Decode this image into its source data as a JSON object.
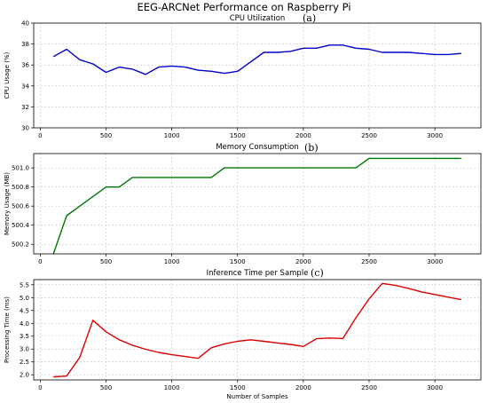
{
  "figure_title": "EEG-ARCNet Performance on Raspberry Pi",
  "chart_data": [
    {
      "type": "line",
      "title": "CPU Utilization",
      "panel_label": "(a)",
      "xlabel": "",
      "ylabel": "CPU Usage (%)",
      "xlim": [
        -50,
        3350
      ],
      "ylim": [
        30,
        40
      ],
      "xticks": [
        0,
        500,
        1000,
        1500,
        2000,
        2500,
        3000
      ],
      "yticks": [
        30,
        32,
        34,
        36,
        38,
        40
      ],
      "ytick_labels": [
        "30",
        "32",
        "34",
        "36",
        "38",
        "40"
      ],
      "grid": true,
      "color": "#0000cc",
      "x": [
        100,
        200,
        300,
        400,
        500,
        600,
        700,
        800,
        900,
        1000,
        1100,
        1200,
        1300,
        1400,
        1500,
        1600,
        1700,
        1800,
        1900,
        2000,
        2100,
        2200,
        2300,
        2400,
        2500,
        2600,
        2700,
        2800,
        2900,
        3000,
        3100,
        3200
      ],
      "values": [
        36.8,
        37.5,
        36.5,
        36.1,
        35.3,
        35.8,
        35.6,
        35.1,
        35.8,
        35.9,
        35.8,
        35.5,
        35.4,
        35.2,
        35.4,
        36.3,
        37.2,
        37.2,
        37.3,
        37.6,
        37.6,
        37.9,
        37.9,
        37.6,
        37.5,
        37.2,
        37.2,
        37.2,
        37.1,
        37.0,
        37.0,
        37.1
      ]
    },
    {
      "type": "line",
      "title": "Memory Consumption",
      "panel_label": "(b)",
      "xlabel": "",
      "ylabel": "Memory Usage (MB)",
      "xlim": [
        -50,
        3350
      ],
      "ylim": [
        500.1,
        501.15
      ],
      "xticks": [
        0,
        500,
        1000,
        1500,
        2000,
        2500,
        3000
      ],
      "yticks": [
        500.2,
        500.4,
        500.6,
        500.8,
        501.0
      ],
      "ytick_labels": [
        "500.2",
        "500.4",
        "500.6",
        "500.8",
        "501.0"
      ],
      "grid": true,
      "color": "#007700",
      "x": [
        100,
        200,
        300,
        400,
        500,
        600,
        700,
        800,
        900,
        1000,
        1100,
        1200,
        1300,
        1400,
        1500,
        1600,
        1700,
        1800,
        1900,
        2000,
        2100,
        2200,
        2300,
        2400,
        2500,
        2600,
        2700,
        2800,
        2900,
        3000,
        3100,
        3200
      ],
      "values": [
        500.1,
        500.5,
        500.6,
        500.7,
        500.8,
        500.8,
        500.9,
        500.9,
        500.9,
        500.9,
        500.9,
        500.9,
        500.9,
        501.0,
        501.0,
        501.0,
        501.0,
        501.0,
        501.0,
        501.0,
        501.0,
        501.0,
        501.0,
        501.0,
        501.1,
        501.1,
        501.1,
        501.1,
        501.1,
        501.1,
        501.1,
        501.1
      ]
    },
    {
      "type": "line",
      "title": "Inference Time per Sample",
      "panel_label": "(c)",
      "xlabel": "Number of Samples",
      "ylabel": "Processing Time (ms)",
      "xlim": [
        -50,
        3350
      ],
      "ylim": [
        1.8,
        5.7
      ],
      "xticks": [
        0,
        500,
        1000,
        1500,
        2000,
        2500,
        3000
      ],
      "yticks": [
        2.0,
        2.5,
        3.0,
        3.5,
        4.0,
        4.5,
        5.0,
        5.5
      ],
      "ytick_labels": [
        "2.0",
        "2.5",
        "3.0",
        "3.5",
        "4.0",
        "4.5",
        "5.0",
        "5.5"
      ],
      "grid": true,
      "color": "#dd0000",
      "x": [
        100,
        200,
        300,
        400,
        500,
        600,
        700,
        800,
        900,
        1000,
        1100,
        1200,
        1300,
        1400,
        1500,
        1600,
        1700,
        1800,
        1900,
        2000,
        2100,
        2200,
        2300,
        2400,
        2500,
        2600,
        2700,
        2800,
        2900,
        3000,
        3100,
        3200
      ],
      "values": [
        1.92,
        1.95,
        2.68,
        4.12,
        3.67,
        3.36,
        3.15,
        2.99,
        2.87,
        2.78,
        2.71,
        2.64,
        3.05,
        3.2,
        3.3,
        3.36,
        3.3,
        3.24,
        3.18,
        3.1,
        3.4,
        3.43,
        3.41,
        4.22,
        4.95,
        5.55,
        5.48,
        5.36,
        5.22,
        5.12,
        5.02,
        4.92
      ]
    }
  ]
}
